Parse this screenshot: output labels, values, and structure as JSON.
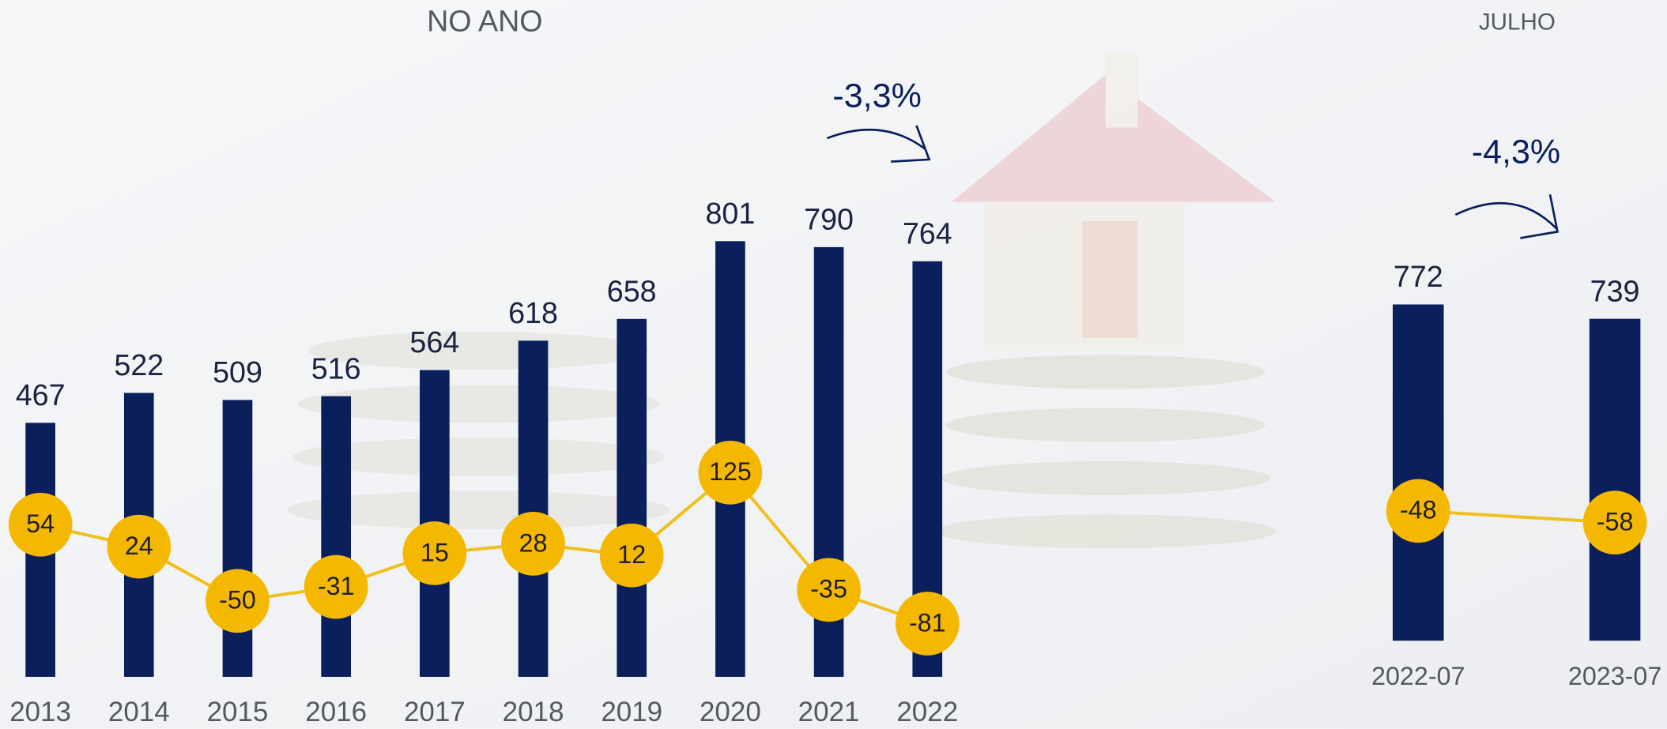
{
  "chart_data": [
    {
      "type": "bar",
      "title": "NO ANO",
      "annotation": "-3,3%",
      "categories": [
        "2013",
        "2014",
        "2015",
        "2016",
        "2017",
        "2018",
        "2019",
        "2020",
        "2021",
        "2022"
      ],
      "series": [
        {
          "color": "#0a1f5c",
          "values": [
            467,
            522,
            509,
            516,
            564,
            618,
            658,
            801,
            790,
            764
          ]
        },
        {
          "type": "line",
          "color": "#f5b800",
          "values": [
            54,
            24,
            -50,
            -31,
            15,
            28,
            12,
            125,
            -35,
            -81
          ]
        }
      ]
    },
    {
      "type": "bar",
      "title": "JULHO",
      "annotation": "-4,3%",
      "categories": [
        "2022-07",
        "2023-07"
      ],
      "series": [
        {
          "color": "#0a1f5c",
          "values": [
            772,
            739
          ]
        },
        {
          "type": "line",
          "color": "#f5b800",
          "values": [
            -48,
            -58
          ]
        }
      ]
    }
  ]
}
